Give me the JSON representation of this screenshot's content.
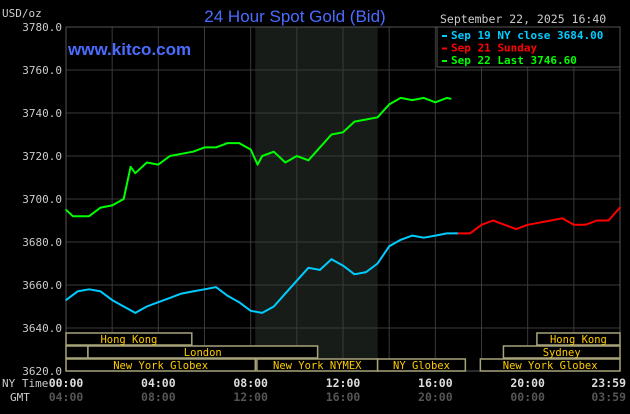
{
  "header": {
    "unit": "USD/oz",
    "title": "24 Hour Spot Gold (Bid)",
    "datetime": "September 22, 2025 16:40",
    "watermark": "www.kitco.com"
  },
  "legend": [
    {
      "label": "Sep 19 NY close 3684.00",
      "color": "#00ccff"
    },
    {
      "label": "Sep 21 Sunday",
      "color": "#ff0000"
    },
    {
      "label": "Sep 22 Last 3746.60",
      "color": "#00ff00"
    }
  ],
  "axis": {
    "ny_label": "NY Time",
    "gmt_label": "GMT",
    "ny_ticks": [
      "00:00",
      "04:00",
      "08:00",
      "12:00",
      "16:00",
      "20:00",
      "23:59"
    ],
    "gmt_ticks": [
      "04:00",
      "08:00",
      "12:00",
      "16:00",
      "20:00",
      "00:00",
      "03:59"
    ]
  },
  "sessions": [
    {
      "label": "Hong Kong",
      "row": 0,
      "start": 0,
      "end": 5.45
    },
    {
      "label": "",
      "row": 1,
      "start": 0,
      "end": 0.95
    },
    {
      "label": "London",
      "row": 1,
      "start": 0.95,
      "end": 10.9
    },
    {
      "label": "New York Globex",
      "row": 2,
      "start": 0,
      "end": 8.2
    },
    {
      "label": "New York NYMEX",
      "row": 2,
      "start": 8.27,
      "end": 13.5
    },
    {
      "label": "NY Globex",
      "row": 2,
      "start": 13.5,
      "end": 17.3
    },
    {
      "label": "Hong Kong",
      "row": 0,
      "start": 20.4,
      "end": 24
    },
    {
      "label": "Sydney",
      "row": 1,
      "start": 18.95,
      "end": 24
    },
    {
      "label": "New York Globex",
      "row": 2,
      "start": 17.95,
      "end": 24
    }
  ],
  "chart_data": {
    "type": "line",
    "title": "24 Hour Spot Gold (Bid)",
    "ylabel": "USD/oz",
    "xlabel": "NY Time",
    "xlim": [
      0,
      24
    ],
    "ylim": [
      3620,
      3780
    ],
    "yticks": [
      "3620.0",
      "3640.0",
      "3660.0",
      "3680.0",
      "3700.0",
      "3720.0",
      "3740.0",
      "3760.0",
      "3780.0"
    ],
    "grid": true,
    "shaded_period": [
      8.2,
      13.5
    ],
    "series": [
      {
        "name": "Sep 19 NY close 3684.00",
        "color": "#00ccff",
        "x": [
          0,
          0.5,
          1,
          1.5,
          2,
          2.5,
          3,
          3.5,
          4,
          4.5,
          5,
          5.5,
          6,
          6.5,
          7,
          7.5,
          8,
          8.5,
          9,
          9.5,
          10,
          10.5,
          11,
          11.5,
          12,
          12.5,
          13,
          13.5,
          14,
          14.5,
          15,
          15.5,
          16,
          16.5,
          17
        ],
        "y": [
          3653,
          3657,
          3658,
          3657,
          3653,
          3650,
          3647,
          3650,
          3652,
          3654,
          3656,
          3657,
          3658,
          3659,
          3655,
          3652,
          3648,
          3647,
          3650,
          3656,
          3662,
          3668,
          3667,
          3672,
          3669,
          3665,
          3666,
          3670,
          3678,
          3681,
          3683,
          3682,
          3683,
          3684,
          3684
        ]
      },
      {
        "name": "Sep 21 Sunday",
        "color": "#ff0000",
        "x": [
          17,
          17.5,
          18,
          18.5,
          19,
          19.5,
          20,
          20.5,
          21,
          21.5,
          22,
          22.5,
          23,
          23.5,
          24
        ],
        "y": [
          3684,
          3684,
          3688,
          3690,
          3688,
          3686,
          3688,
          3689,
          3690,
          3691,
          3688,
          3688,
          3690,
          3690,
          3696
        ]
      },
      {
        "name": "Sep 22 Last 3746.60",
        "color": "#00ff00",
        "x": [
          0,
          0.3,
          1,
          1.5,
          2,
          2.5,
          2.8,
          3,
          3.5,
          4,
          4.5,
          5,
          5.5,
          6,
          6.5,
          7,
          7.5,
          8,
          8.3,
          8.5,
          9,
          9.5,
          10,
          10.5,
          11,
          11.5,
          12,
          12.5,
          13,
          13.5,
          14,
          14.5,
          15,
          15.5,
          16,
          16.5,
          16.67
        ],
        "y": [
          3695,
          3692,
          3692,
          3696,
          3697,
          3700,
          3715,
          3712,
          3717,
          3716,
          3720,
          3721,
          3722,
          3724,
          3724,
          3726,
          3726,
          3723,
          3716,
          3720,
          3722,
          3717,
          3720,
          3718,
          3724,
          3730,
          3731,
          3736,
          3737,
          3738,
          3744,
          3747,
          3746,
          3747,
          3745,
          3747,
          3746.6
        ]
      }
    ]
  }
}
